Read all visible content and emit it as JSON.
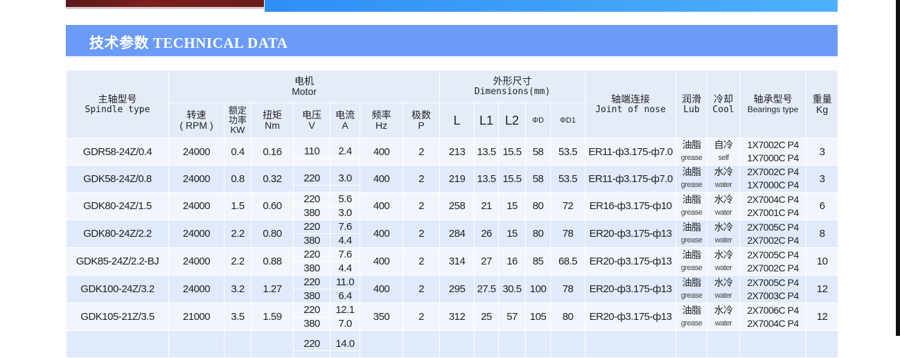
{
  "section_title": "技术参数 TECHNICAL DATA",
  "header": {
    "spindle_type": {
      "cn": "主轴型号",
      "en": "Spindle type"
    },
    "motor": {
      "cn": "电机",
      "en": "Motor"
    },
    "dimensions": {
      "cn": "外形尺寸",
      "en": "Dimensions(mm)"
    },
    "joint": {
      "cn": "轴端连接",
      "en": "Joint of nose"
    },
    "lub": {
      "cn": "润滑",
      "en": "Lub"
    },
    "cool": {
      "cn": "冷却",
      "en": "Cool"
    },
    "bearings": {
      "cn": "轴承型号",
      "en": "Bearings type"
    },
    "weight": {
      "cn": "重量",
      "en": "Kg"
    },
    "speed": {
      "cn": "转速",
      "en": "( RPM )"
    },
    "power": {
      "cn1": "额定",
      "cn2": "功率",
      "en": "KW"
    },
    "torque": {
      "cn": "扭矩",
      "en": "Nm"
    },
    "voltage": {
      "cn": "电压",
      "en": "V"
    },
    "current": {
      "cn": "电流",
      "en": "A"
    },
    "freq": {
      "cn": "频率",
      "en": "Hz"
    },
    "poles": {
      "cn": "极数",
      "en": "P"
    },
    "L": "L",
    "L1": "L1",
    "L2": "L2",
    "D": "ΦD",
    "D1": "ΦD1"
  },
  "rows": [
    {
      "type": "GDR58-24Z/0.4",
      "rpm": "24000",
      "kw": "0.4",
      "nm": "0.16",
      "v": [
        "110"
      ],
      "a": [
        "2.4"
      ],
      "hz": "400",
      "p": "2",
      "L": "213",
      "L1": "13.5",
      "L2": "15.5",
      "D": "58",
      "D1": "53.5",
      "joint": "ER11-ф3.175-ф7.0",
      "lub": [
        "油脂",
        "grease"
      ],
      "cool": [
        "自冷",
        "self"
      ],
      "bearings": [
        "1X7002C P4",
        "1X7000C P4"
      ],
      "kg": "3"
    },
    {
      "type": "GDK58-24Z/0.8",
      "rpm": "24000",
      "kw": "0.8",
      "nm": "0.32",
      "v": [
        "220"
      ],
      "a": [
        "3.0"
      ],
      "hz": "400",
      "p": "2",
      "L": "219",
      "L1": "13.5",
      "L2": "15.5",
      "D": "58",
      "D1": "53.5",
      "joint": "ER11-ф3.175-ф7.0",
      "lub": [
        "油脂",
        "grease"
      ],
      "cool": [
        "水冷",
        "water"
      ],
      "bearings": [
        "2X7002C P4",
        "1X7000C P4"
      ],
      "kg": "3"
    },
    {
      "type": "GDK80-24Z/1.5",
      "rpm": "24000",
      "kw": "1.5",
      "nm": "0.60",
      "v": [
        "220",
        "380"
      ],
      "a": [
        "5.6",
        "3.0"
      ],
      "hz": "400",
      "p": "2",
      "L": "258",
      "L1": "21",
      "L2": "15",
      "D": "80",
      "D1": "72",
      "joint": "ER16-ф3.175-ф10",
      "lub": [
        "油脂",
        "grease"
      ],
      "cool": [
        "水冷",
        "water"
      ],
      "bearings": [
        "2X7004C P4",
        "2X7001C P4"
      ],
      "kg": "6"
    },
    {
      "type": "GDK80-24Z/2.2",
      "rpm": "24000",
      "kw": "2.2",
      "nm": "0.80",
      "v": [
        "220",
        "380"
      ],
      "a": [
        "7.6",
        "4.4"
      ],
      "hz": "400",
      "p": "2",
      "L": "284",
      "L1": "26",
      "L2": "15",
      "D": "80",
      "D1": "78",
      "joint": "ER20-ф3.175-ф13",
      "lub": [
        "油脂",
        "grease"
      ],
      "cool": [
        "水冷",
        "water"
      ],
      "bearings": [
        "2X7005C P4",
        "2X7002C P4"
      ],
      "kg": "8"
    },
    {
      "type": "GDK85-24Z/2.2-BJ",
      "rpm": "24000",
      "kw": "2.2",
      "nm": "0.88",
      "v": [
        "220",
        "380"
      ],
      "a": [
        "7.6",
        "4.4"
      ],
      "hz": "400",
      "p": "2",
      "L": "314",
      "L1": "27",
      "L2": "16",
      "D": "85",
      "D1": "68.5",
      "joint": "ER20-ф3.175-ф13",
      "lub": [
        "油脂",
        "grease"
      ],
      "cool": [
        "水冷",
        "water"
      ],
      "bearings": [
        "2X7005C P4",
        "2X7002C P4"
      ],
      "kg": "10"
    },
    {
      "type": "GDK100-24Z/3.2",
      "rpm": "24000",
      "kw": "3.2",
      "nm": "1.27",
      "v": [
        "220",
        "380"
      ],
      "a": [
        "11.0",
        "6.4"
      ],
      "hz": "400",
      "p": "2",
      "L": "295",
      "L1": "27.5",
      "L2": "30.5",
      "D": "100",
      "D1": "78",
      "joint": "ER20-ф3.175-ф13",
      "lub": [
        "油脂",
        "grease"
      ],
      "cool": [
        "水冷",
        "water"
      ],
      "bearings": [
        "2X7005C P4",
        "2X7003C P4"
      ],
      "kg": "12"
    },
    {
      "type": "GDK105-21Z/3.5",
      "rpm": "21000",
      "kw": "3.5",
      "nm": "1.59",
      "v": [
        "220",
        "380"
      ],
      "a": [
        "12.1",
        "7.0"
      ],
      "hz": "350",
      "p": "2",
      "L": "312",
      "L1": "25",
      "L2": "57",
      "D": "105",
      "D1": "80",
      "joint": "ER20-ф3.175-ф13",
      "lub": [
        "油脂",
        "grease"
      ],
      "cool": [
        "水冷",
        "water"
      ],
      "bearings": [
        "2X7006C P4",
        "2X7004C P4"
      ],
      "kg": "12"
    },
    {
      "type": "",
      "rpm": "",
      "kw": "",
      "nm": "",
      "v": [
        "220"
      ],
      "a": [
        "14.0"
      ],
      "hz": "",
      "p": "",
      "L": "",
      "L1": "",
      "L2": "",
      "D": "",
      "D1": "",
      "joint": "",
      "lub": [
        "",
        ""
      ],
      "cool": [
        "",
        ""
      ],
      "bearings": [
        "",
        ""
      ],
      "kg": ""
    }
  ]
}
